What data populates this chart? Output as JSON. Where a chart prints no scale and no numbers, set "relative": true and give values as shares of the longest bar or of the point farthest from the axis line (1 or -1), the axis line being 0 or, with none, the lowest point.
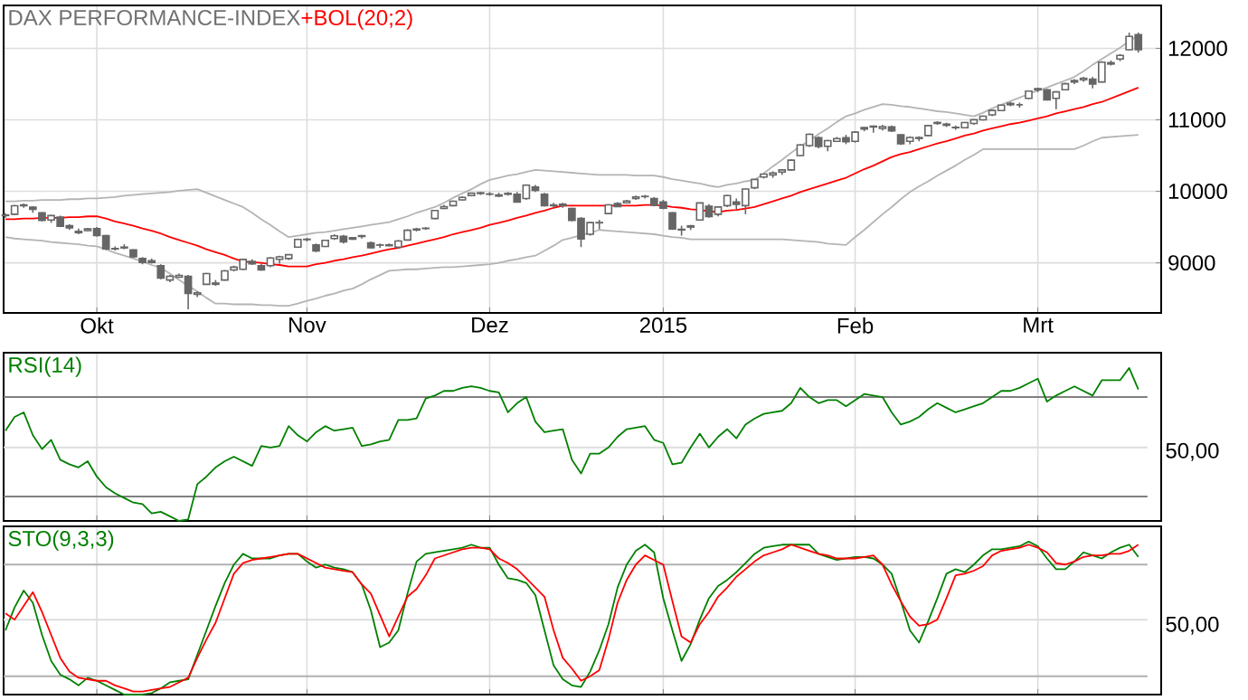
{
  "chart_data": [
    {
      "type": "candlestick",
      "title": "DAX PERFORMANCE-INDEX",
      "color": "#666666",
      "legend": "top left",
      "grid": true,
      "categories": [
        null,
        null,
        null,
        null,
        null,
        null,
        null,
        null,
        null,
        null,
        "Okt",
        null,
        null,
        null,
        null,
        null,
        null,
        null,
        null,
        null,
        null,
        null,
        null,
        null,
        null,
        null,
        null,
        null,
        null,
        null,
        null,
        null,
        null,
        "Nov",
        null,
        null,
        null,
        null,
        null,
        null,
        null,
        null,
        null,
        null,
        null,
        null,
        null,
        null,
        null,
        null,
        null,
        null,
        null,
        "Dez",
        null,
        null,
        null,
        null,
        null,
        null,
        null,
        null,
        null,
        null,
        null,
        null,
        null,
        null,
        null,
        null,
        null,
        null,
        "2015",
        null,
        null,
        null,
        null,
        null,
        null,
        null,
        null,
        null,
        null,
        null,
        null,
        null,
        null,
        null,
        null,
        null,
        null,
        null,
        null,
        "Feb",
        null,
        null,
        null,
        null,
        null,
        null,
        null,
        null,
        null,
        null,
        null,
        null,
        null,
        null,
        null,
        null,
        null,
        null,
        null,
        "Mrt",
        null,
        null,
        null,
        null,
        null,
        null,
        null,
        null,
        null,
        null,
        null
      ],
      "ohlc": [
        [
          9670,
          9690,
          9630,
          9661
        ],
        [
          9680,
          9810,
          9670,
          9798
        ],
        [
          9810,
          9830,
          9770,
          9799
        ],
        [
          9780,
          9790,
          9700,
          9749
        ],
        [
          9700,
          9710,
          9580,
          9595
        ],
        [
          9600,
          9670,
          9560,
          9661
        ],
        [
          9640,
          9660,
          9500,
          9510
        ],
        [
          9520,
          9540,
          9460,
          9490
        ],
        [
          9440,
          9480,
          9400,
          9422
        ],
        [
          9450,
          9490,
          9440,
          9474
        ],
        [
          9480,
          9500,
          9370,
          9382
        ],
        [
          9380,
          9390,
          9180,
          9195
        ],
        [
          9200,
          9230,
          9170,
          9195
        ],
        [
          9220,
          9260,
          9190,
          9209
        ],
        [
          9180,
          9190,
          9070,
          9086
        ],
        [
          9060,
          9080,
          8980,
          9005
        ],
        [
          9030,
          9060,
          8990,
          9005
        ],
        [
          8960,
          8980,
          8770,
          8788
        ],
        [
          8760,
          8830,
          8730,
          8812
        ],
        [
          8800,
          8850,
          8790,
          8825
        ],
        [
          8810,
          8830,
          8350,
          8572
        ],
        [
          8560,
          8600,
          8520,
          8582
        ],
        [
          8700,
          8860,
          8690,
          8850
        ],
        [
          8700,
          8760,
          8680,
          8717
        ],
        [
          8760,
          8900,
          8750,
          8887
        ],
        [
          8900,
          8960,
          8880,
          8940
        ],
        [
          8910,
          9060,
          8900,
          9048
        ],
        [
          9020,
          9050,
          8970,
          8988
        ],
        [
          8960,
          8990,
          8890,
          8902
        ],
        [
          8960,
          9080,
          8940,
          9068
        ],
        [
          9050,
          9100,
          8990,
          9083
        ],
        [
          9060,
          9120,
          9040,
          9114
        ],
        [
          9220,
          9340,
          9210,
          9327
        ],
        [
          9330,
          9350,
          9300,
          9325
        ],
        [
          9250,
          9270,
          9150,
          9166
        ],
        [
          9230,
          9320,
          9220,
          9315
        ],
        [
          9340,
          9400,
          9320,
          9378
        ],
        [
          9370,
          9390,
          9270,
          9292
        ],
        [
          9330,
          9360,
          9320,
          9351
        ],
        [
          9380,
          9390,
          9340,
          9369
        ],
        [
          9280,
          9300,
          9200,
          9210
        ],
        [
          9250,
          9270,
          9210,
          9248
        ],
        [
          9240,
          9270,
          9230,
          9252
        ],
        [
          9220,
          9320,
          9200,
          9306
        ],
        [
          9320,
          9470,
          9310,
          9456
        ],
        [
          9460,
          9490,
          9440,
          9473
        ],
        [
          9480,
          9500,
          9460,
          9484
        ],
        [
          9620,
          9740,
          9610,
          9732
        ],
        [
          9760,
          9810,
          9750,
          9785
        ],
        [
          9800,
          9870,
          9790,
          9861
        ],
        [
          9880,
          9930,
          9870,
          9915
        ],
        [
          9940,
          9980,
          9930,
          9974
        ],
        [
          9970,
          9990,
          9950,
          9980
        ],
        [
          9960,
          9990,
          9940,
          9963
        ],
        [
          9950,
          9980,
          9920,
          9934
        ],
        [
          9960,
          9990,
          9940,
          9971
        ],
        [
          9960,
          9990,
          9850,
          9851
        ],
        [
          9900,
          10100,
          9880,
          10087
        ],
        [
          10060,
          10090,
          9990,
          10014
        ],
        [
          9960,
          9980,
          9790,
          9799
        ],
        [
          9810,
          9840,
          9760,
          9800
        ],
        [
          9820,
          9840,
          9770,
          9799
        ],
        [
          9760,
          9770,
          9580,
          9595
        ],
        [
          9620,
          9640,
          9220,
          9335
        ],
        [
          9400,
          9570,
          9380,
          9563
        ],
        [
          9560,
          9600,
          9470,
          9564
        ],
        [
          9690,
          9820,
          9680,
          9811
        ],
        [
          9830,
          9850,
          9780,
          9787
        ],
        [
          9840,
          9880,
          9830,
          9865
        ],
        [
          9900,
          9940,
          9880,
          9922
        ],
        [
          9930,
          9950,
          9900,
          9927
        ],
        [
          9900,
          9920,
          9790,
          9806
        ],
        [
          9850,
          9880,
          9750,
          9765
        ],
        [
          9700,
          9710,
          9460,
          9473
        ],
        [
          9460,
          9520,
          9380,
          9469
        ],
        [
          9500,
          9530,
          9460,
          9518
        ],
        [
          9600,
          9840,
          9590,
          9838
        ],
        [
          9790,
          9820,
          9630,
          9648
        ],
        [
          9680,
          9790,
          9650,
          9781
        ],
        [
          9800,
          9950,
          9780,
          9941
        ],
        [
          9850,
          9900,
          9750,
          9817
        ],
        [
          9800,
          10040,
          9680,
          10032
        ],
        [
          10050,
          10170,
          10030,
          10167
        ],
        [
          10200,
          10250,
          10180,
          10242
        ],
        [
          10230,
          10280,
          10190,
          10257
        ],
        [
          10270,
          10310,
          10230,
          10299
        ],
        [
          10300,
          10450,
          10290,
          10435
        ],
        [
          10500,
          10660,
          10490,
          10649
        ],
        [
          10640,
          10810,
          10620,
          10798
        ],
        [
          10750,
          10770,
          10600,
          10628
        ],
        [
          10630,
          10720,
          10560,
          10710
        ],
        [
          10700,
          10760,
          10690,
          10738
        ],
        [
          10750,
          10790,
          10660,
          10694
        ],
        [
          10700,
          10840,
          10680,
          10828
        ],
        [
          10870,
          10900,
          10840,
          10891
        ],
        [
          10900,
          10920,
          10820,
          10911
        ],
        [
          10880,
          10930,
          10850,
          10905
        ],
        [
          10900,
          10920,
          10830,
          10846
        ],
        [
          10790,
          10800,
          10650,
          10664
        ],
        [
          10700,
          10770,
          10660,
          10753
        ],
        [
          10740,
          10770,
          10700,
          10752
        ],
        [
          10780,
          10930,
          10770,
          10919
        ],
        [
          10950,
          10980,
          10930,
          10963
        ],
        [
          10940,
          10960,
          10900,
          10924
        ],
        [
          10890,
          10920,
          10860,
          10895
        ],
        [
          10890,
          10970,
          10880,
          10962
        ],
        [
          10950,
          11010,
          10930,
          11001
        ],
        [
          11000,
          11060,
          10990,
          11050
        ],
        [
          11070,
          11140,
          11050,
          11131
        ],
        [
          11130,
          11210,
          11120,
          11206
        ],
        [
          11230,
          11250,
          11190,
          11211
        ],
        [
          11210,
          11240,
          11170,
          11210
        ],
        [
          11300,
          11410,
          11290,
          11402
        ],
        [
          11420,
          11450,
          11390,
          11436
        ],
        [
          11420,
          11430,
          11270,
          11280
        ],
        [
          11300,
          11400,
          11150,
          11390
        ],
        [
          11420,
          11520,
          11410,
          11504
        ],
        [
          11530,
          11570,
          11500,
          11551
        ],
        [
          11560,
          11600,
          11530,
          11582
        ],
        [
          11570,
          11600,
          11440,
          11500
        ],
        [
          11530,
          11820,
          11520,
          11806
        ],
        [
          11780,
          11830,
          11760,
          11799
        ],
        [
          11850,
          11920,
          11820,
          11901
        ],
        [
          11980,
          12220,
          11970,
          12167
        ],
        [
          12190,
          12220,
          11940,
          11980
        ]
      ],
      "series": [
        {
          "name": "+BOL(20;2)",
          "type": "line",
          "color": "#ff0000",
          "values": [
            9610,
            9610,
            9620,
            9620,
            9630,
            9630,
            9630,
            9640,
            9640,
            9650,
            9650,
            9620,
            9580,
            9550,
            9520,
            9480,
            9450,
            9410,
            9360,
            9320,
            9280,
            9240,
            9190,
            9150,
            9110,
            9060,
            9020,
            9010,
            9000,
            8980,
            8970,
            8950,
            8950,
            8950,
            8980,
            9000,
            9030,
            9050,
            9080,
            9100,
            9130,
            9160,
            9190,
            9210,
            9240,
            9270,
            9300,
            9330,
            9360,
            9400,
            9430,
            9460,
            9490,
            9530,
            9560,
            9590,
            9630,
            9660,
            9700,
            9730,
            9770,
            9800,
            9800,
            9800,
            9800,
            9800,
            9800,
            9800,
            9800,
            9800,
            9810,
            9810,
            9800,
            9780,
            9770,
            9750,
            9740,
            9720,
            9710,
            9730,
            9740,
            9760,
            9780,
            9820,
            9860,
            9900,
            9940,
            9990,
            10030,
            10070,
            10110,
            10150,
            10190,
            10250,
            10310,
            10360,
            10420,
            10480,
            10520,
            10550,
            10590,
            10630,
            10670,
            10700,
            10740,
            10780,
            10810,
            10850,
            10880,
            10910,
            10940,
            10960,
            10990,
            11020,
            11050,
            11090,
            11120,
            11150,
            11180,
            11220,
            11250,
            11300,
            11350,
            11400,
            11450
          ]
        },
        {
          "type": "line",
          "color": "#b4b4b4",
          "values": [
            9860,
            9860,
            9870,
            9870,
            9880,
            9880,
            9880,
            9890,
            9890,
            9900,
            9900,
            9910,
            9920,
            9940,
            9950,
            9960,
            9970,
            9980,
            9990,
            10010,
            10020,
            10030,
            9980,
            9930,
            9880,
            9830,
            9780,
            9700,
            9610,
            9530,
            9440,
            9360,
            9380,
            9400,
            9420,
            9430,
            9450,
            9470,
            9490,
            9510,
            9530,
            9550,
            9570,
            9610,
            9650,
            9700,
            9740,
            9780,
            9840,
            9910,
            9970,
            10030,
            10100,
            10160,
            10190,
            10220,
            10240,
            10270,
            10300,
            10290,
            10280,
            10270,
            10260,
            10250,
            10240,
            10230,
            10230,
            10230,
            10230,
            10220,
            10220,
            10220,
            10200,
            10170,
            10150,
            10130,
            10110,
            10080,
            10060,
            10090,
            10110,
            10140,
            10160,
            10250,
            10350,
            10440,
            10540,
            10630,
            10710,
            10800,
            10880,
            10970,
            11050,
            11090,
            11140,
            11180,
            11220,
            11210,
            11190,
            11180,
            11160,
            11140,
            11120,
            11110,
            11090,
            11070,
            11050,
            11100,
            11160,
            11210,
            11260,
            11310,
            11360,
            11410,
            11450,
            11500,
            11550,
            11600,
            11680,
            11770,
            11850,
            11930,
            12010,
            12100,
            12180
          ]
        },
        {
          "type": "line",
          "color": "#b4b4b4",
          "values": [
            9360,
            9340,
            9330,
            9320,
            9310,
            9290,
            9280,
            9270,
            9260,
            9240,
            9230,
            9190,
            9140,
            9100,
            9060,
            9020,
            8970,
            8930,
            8850,
            8760,
            8680,
            8600,
            8510,
            8430,
            8430,
            8420,
            8420,
            8420,
            8410,
            8410,
            8400,
            8400,
            8430,
            8470,
            8500,
            8540,
            8570,
            8610,
            8640,
            8700,
            8770,
            8830,
            8890,
            8900,
            8910,
            8910,
            8920,
            8930,
            8940,
            8940,
            8950,
            8960,
            8970,
            8980,
            9000,
            9030,
            9050,
            9080,
            9100,
            9170,
            9240,
            9320,
            9350,
            9390,
            9420,
            9460,
            9450,
            9440,
            9430,
            9420,
            9410,
            9400,
            9380,
            9360,
            9350,
            9330,
            9330,
            9330,
            9330,
            9330,
            9330,
            9330,
            9330,
            9330,
            9330,
            9330,
            9320,
            9310,
            9300,
            9290,
            9270,
            9260,
            9250,
            9360,
            9460,
            9570,
            9680,
            9780,
            9890,
            9990,
            10070,
            10140,
            10220,
            10290,
            10360,
            10440,
            10510,
            10590,
            10590,
            10590,
            10590,
            10590,
            10590,
            10590,
            10590,
            10590,
            10590,
            10590,
            10640,
            10700,
            10750,
            10760,
            10770,
            10780,
            10790
          ]
        }
      ],
      "ylim": [
        8300,
        12600
      ],
      "yticks": [
        9000,
        10000,
        11000,
        12000
      ]
    },
    {
      "type": "line",
      "relative": true,
      "legend": "top left",
      "grid": "x",
      "categories": [
        null,
        null,
        null,
        null,
        null,
        null,
        null,
        null,
        null,
        null,
        null,
        null,
        null,
        null,
        null,
        null,
        null,
        null,
        null,
        null,
        null,
        null,
        null,
        null,
        null,
        null,
        null,
        null,
        null,
        null,
        null,
        null,
        null,
        null,
        null,
        null,
        null,
        null,
        null,
        null,
        null,
        null,
        null,
        null,
        null,
        null,
        null,
        null,
        null,
        null,
        null,
        null,
        null,
        null,
        null,
        null,
        null,
        null,
        null,
        null,
        null,
        null,
        null,
        null,
        null,
        null,
        null,
        null,
        null,
        null,
        null,
        null,
        null,
        null,
        null,
        null,
        null,
        null,
        null,
        null,
        null,
        null,
        null,
        null,
        null,
        null,
        null,
        null,
        null,
        null,
        null,
        null,
        null,
        null,
        null,
        null,
        null,
        null,
        null,
        null,
        null,
        null,
        null,
        null,
        null,
        null,
        null,
        null,
        null,
        null,
        null,
        null,
        null,
        null,
        null,
        null,
        null,
        null,
        null,
        null,
        null,
        null,
        null,
        null,
        null
      ],
      "series": [
        {
          "name": "RSI(14)",
          "color": "#008000",
          "values": [
            0.59,
            0.68,
            0.71,
            0.56,
            0.47,
            0.53,
            0.4,
            0.37,
            0.35,
            0.39,
            0.29,
            0.22,
            0.18,
            0.15,
            0.12,
            0.11,
            0.05,
            0.06,
            0.03,
            0,
            0.01,
            0.24,
            0.29,
            0.35,
            0.39,
            0.42,
            0.39,
            0.36,
            0.49,
            0.48,
            0.49,
            0.62,
            0.56,
            0.52,
            0.58,
            0.62,
            0.59,
            0.6,
            0.61,
            0.49,
            0.5,
            0.52,
            0.53,
            0.66,
            0.66,
            0.67,
            0.8,
            0.82,
            0.85,
            0.85,
            0.87,
            0.88,
            0.87,
            0.85,
            0.84,
            0.71,
            0.77,
            0.81,
            0.65,
            0.58,
            0.59,
            0.6,
            0.4,
            0.31,
            0.44,
            0.44,
            0.48,
            0.55,
            0.6,
            0.61,
            0.62,
            0.53,
            0.51,
            0.37,
            0.38,
            0.48,
            0.57,
            0.48,
            0.55,
            0.6,
            0.54,
            0.63,
            0.67,
            0.7,
            0.71,
            0.72,
            0.77,
            0.87,
            0.81,
            0.77,
            0.79,
            0.79,
            0.75,
            0.79,
            0.83,
            0.82,
            0.81,
            0.71,
            0.63,
            0.65,
            0.68,
            0.73,
            0.77,
            0.74,
            0.71,
            0.73,
            0.75,
            0.77,
            0.81,
            0.85,
            0.85,
            0.87,
            0.9,
            0.93,
            0.78,
            0.82,
            0.85,
            0.88,
            0.85,
            0.82,
            0.92,
            0.92,
            0.92,
            1,
            0.86
          ]
        }
      ],
      "ref_lines": [
        {
          "axis": "y",
          "value": 0.81,
          "color": "#808080"
        },
        {
          "axis": "y",
          "value": 0.48,
          "color": "#dddddd"
        },
        {
          "axis": "y",
          "value": 0.16,
          "color": "#808080"
        }
      ],
      "annotations": [
        "50,00"
      ]
    },
    {
      "type": "line",
      "relative": true,
      "legend": "top left",
      "grid": "x",
      "categories": [
        null,
        null,
        null,
        null,
        null,
        null,
        null,
        null,
        null,
        null,
        null,
        null,
        null,
        null,
        null,
        null,
        null,
        null,
        null,
        null,
        null,
        null,
        null,
        null,
        null,
        null,
        null,
        null,
        null,
        null,
        null,
        null,
        null,
        null,
        null,
        null,
        null,
        null,
        null,
        null,
        null,
        null,
        null,
        null,
        null,
        null,
        null,
        null,
        null,
        null,
        null,
        null,
        null,
        null,
        null,
        null,
        null,
        null,
        null,
        null,
        null,
        null,
        null,
        null,
        null,
        null,
        null,
        null,
        null,
        null,
        null,
        null,
        null,
        null,
        null,
        null,
        null,
        null,
        null,
        null,
        null,
        null,
        null,
        null,
        null,
        null,
        null,
        null,
        null,
        null,
        null,
        null,
        null,
        null,
        null,
        null,
        null,
        null,
        null,
        null,
        null,
        null,
        null,
        null,
        null,
        null,
        null,
        null,
        null,
        null,
        null,
        null,
        null,
        null,
        null,
        null,
        null,
        null,
        null,
        null,
        null,
        null,
        null,
        null,
        null
      ],
      "series": [
        {
          "name": "STO(9,3,3)",
          "color": "#008000",
          "values": [
            0.42,
            0.57,
            0.68,
            0.6,
            0.39,
            0.22,
            0.13,
            0.1,
            0.06,
            0.11,
            0.09,
            0.06,
            0.03,
            0,
            0,
            0,
            0.01,
            0.04,
            0.08,
            0.09,
            0.1,
            0.26,
            0.42,
            0.58,
            0.73,
            0.85,
            0.92,
            0.89,
            0.89,
            0.89,
            0.91,
            0.92,
            0.92,
            0.87,
            0.83,
            0.85,
            0.83,
            0.82,
            0.8,
            0.72,
            0.55,
            0.31,
            0.34,
            0.42,
            0.66,
            0.87,
            0.92,
            0.93,
            0.94,
            0.95,
            0.96,
            0.98,
            0.96,
            0.96,
            0.85,
            0.76,
            0.75,
            0.73,
            0.65,
            0.42,
            0.19,
            0.1,
            0.06,
            0.05,
            0.15,
            0.29,
            0.46,
            0.7,
            0.85,
            0.94,
            0.98,
            0.93,
            0.63,
            0.42,
            0.22,
            0.33,
            0.49,
            0.63,
            0.71,
            0.75,
            0.8,
            0.86,
            0.92,
            0.96,
            0.97,
            0.98,
            0.98,
            0.98,
            0.98,
            0.92,
            0.9,
            0.88,
            0.89,
            0.9,
            0.9,
            0.89,
            0.85,
            0.79,
            0.61,
            0.42,
            0.34,
            0.48,
            0.63,
            0.79,
            0.82,
            0.8,
            0.85,
            0.91,
            0.95,
            0.95,
            0.96,
            0.97,
            1,
            0.97,
            0.89,
            0.82,
            0.82,
            0.87,
            0.93,
            0.91,
            0.89,
            0.93,
            0.96,
            0.98,
            0.9
          ]
        },
        {
          "color": "#ff0000",
          "values": [
            0.53,
            0.49,
            0.58,
            0.67,
            0.54,
            0.39,
            0.24,
            0.15,
            0.11,
            0.1,
            0.09,
            0.09,
            0.06,
            0.04,
            0.02,
            0.02,
            0.03,
            0.04,
            0.05,
            0.08,
            0.11,
            0.24,
            0.36,
            0.47,
            0.63,
            0.79,
            0.86,
            0.88,
            0.89,
            0.9,
            0.91,
            0.92,
            0.92,
            0.89,
            0.86,
            0.83,
            0.82,
            0.81,
            0.8,
            0.72,
            0.66,
            0.52,
            0.38,
            0.51,
            0.64,
            0.69,
            0.78,
            0.89,
            0.91,
            0.93,
            0.95,
            0.96,
            0.96,
            0.95,
            0.89,
            0.86,
            0.82,
            0.76,
            0.7,
            0.64,
            0.42,
            0.24,
            0.17,
            0.09,
            0.12,
            0.16,
            0.36,
            0.6,
            0.75,
            0.85,
            0.91,
            0.88,
            0.85,
            0.61,
            0.38,
            0.34,
            0.46,
            0.54,
            0.64,
            0.7,
            0.77,
            0.82,
            0.87,
            0.91,
            0.93,
            0.95,
            0.98,
            0.96,
            0.94,
            0.92,
            0.91,
            0.89,
            0.89,
            0.89,
            0.9,
            0.91,
            0.85,
            0.72,
            0.61,
            0.51,
            0.45,
            0.46,
            0.49,
            0.63,
            0.78,
            0.79,
            0.81,
            0.84,
            0.91,
            0.94,
            0.95,
            0.96,
            0.98,
            0.96,
            0.93,
            0.86,
            0.85,
            0.87,
            0.9,
            0.91,
            0.91,
            0.92,
            0.92,
            0.94,
            0.98
          ]
        }
      ],
      "ref_lines": [
        {
          "axis": "y",
          "value": 0.85,
          "color": "#b0b0b0"
        },
        {
          "axis": "y",
          "value": 0.49,
          "color": "#dddddd"
        },
        {
          "axis": "y",
          "value": 0.12,
          "color": "#b0b0b0"
        }
      ],
      "annotations": [
        "50,00"
      ]
    }
  ]
}
